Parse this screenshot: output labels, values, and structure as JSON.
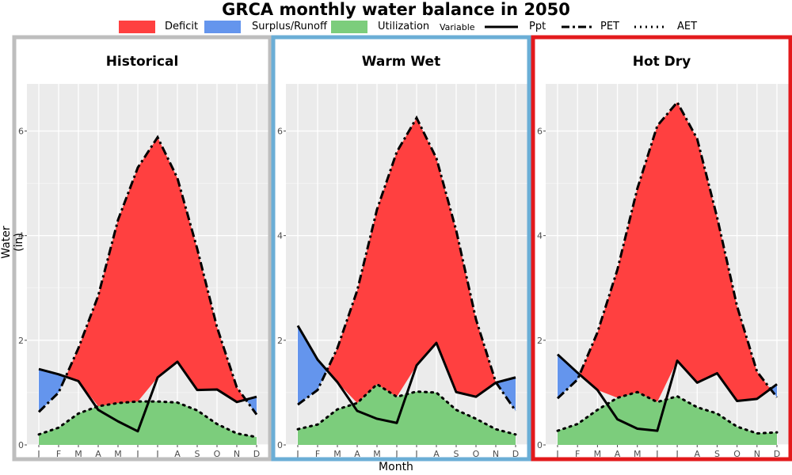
{
  "title": "GRCA monthly water balance in 2050",
  "legend": {
    "fill_items": [
      {
        "label": "Deficit",
        "color": "#ff4040"
      },
      {
        "label": "Surplus/Runoff",
        "color": "#6495ed"
      },
      {
        "label": "Utilization",
        "color": "#7ccd7c"
      }
    ],
    "variable_title": "Variable",
    "line_items": [
      {
        "label": "Ppt",
        "style": "solid"
      },
      {
        "label": "PET",
        "style": "dashdot"
      },
      {
        "label": "AET",
        "style": "dotted"
      }
    ]
  },
  "chart_data": {
    "type": "area",
    "xlabel": "Month",
    "ylabel": "Water (in)",
    "ylim": [
      0,
      6.9
    ],
    "yticks": [
      0,
      2,
      4,
      6
    ],
    "months": [
      "J",
      "F",
      "M",
      "A",
      "M",
      "J",
      "J",
      "A",
      "S",
      "O",
      "N",
      "D"
    ],
    "grid": true,
    "panels": [
      {
        "title": "Historical",
        "border_color": "#bebebe",
        "ppt": [
          1.45,
          1.35,
          1.22,
          0.67,
          0.45,
          0.26,
          1.29,
          1.59,
          1.05,
          1.06,
          0.82,
          0.92
        ],
        "pet": [
          0.63,
          1.0,
          1.85,
          2.85,
          4.3,
          5.3,
          5.88,
          5.1,
          3.75,
          2.25,
          1.1,
          0.58
        ],
        "aet": [
          0.2,
          0.33,
          0.6,
          0.74,
          0.8,
          0.83,
          0.83,
          0.81,
          0.66,
          0.4,
          0.22,
          0.15
        ]
      },
      {
        "title": "Warm Wet",
        "border_color": "#6baed6",
        "ppt": [
          2.28,
          1.63,
          1.2,
          0.65,
          0.5,
          0.42,
          1.52,
          1.95,
          1.01,
          0.92,
          1.19,
          1.29
        ],
        "pet": [
          0.77,
          1.05,
          1.85,
          2.95,
          4.5,
          5.6,
          6.25,
          5.48,
          4.1,
          2.4,
          1.2,
          0.65
        ],
        "aet": [
          0.3,
          0.39,
          0.68,
          0.8,
          1.16,
          0.92,
          1.02,
          1.0,
          0.67,
          0.5,
          0.3,
          0.2
        ]
      },
      {
        "title": "Hot Dry",
        "border_color": "#e31a1c",
        "ppt": [
          1.73,
          1.38,
          1.05,
          0.49,
          0.31,
          0.27,
          1.61,
          1.19,
          1.37,
          0.84,
          0.88,
          1.16
        ],
        "pet": [
          0.89,
          1.25,
          2.15,
          3.35,
          4.9,
          6.1,
          6.55,
          5.85,
          4.35,
          2.65,
          1.4,
          0.91
        ],
        "aet": [
          0.27,
          0.4,
          0.67,
          0.9,
          1.01,
          0.82,
          0.93,
          0.72,
          0.6,
          0.35,
          0.22,
          0.24
        ]
      }
    ]
  }
}
